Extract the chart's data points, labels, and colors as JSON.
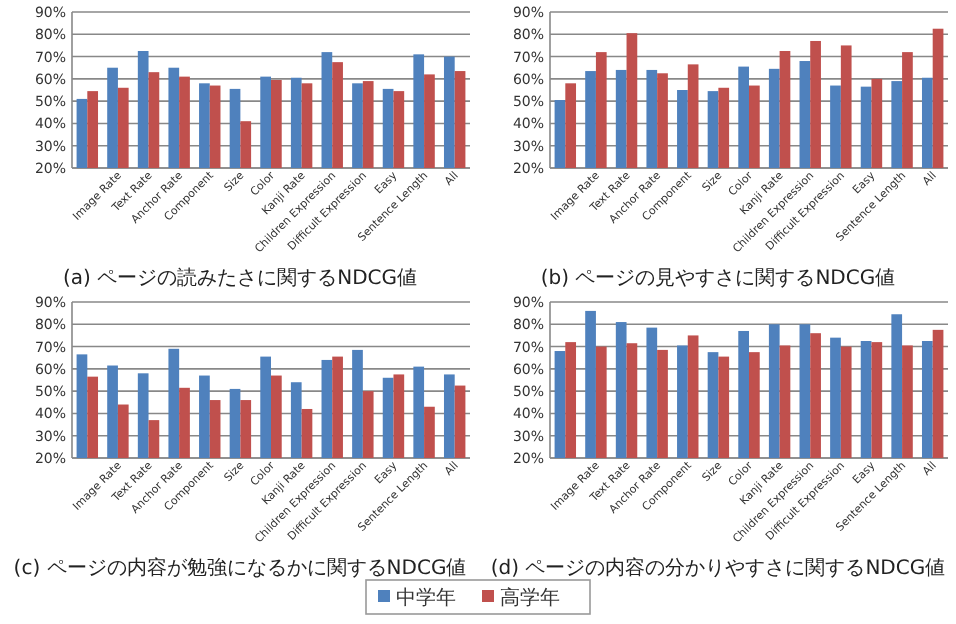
{
  "chart_data": [
    {
      "type": "bar",
      "title": "(a) ページの読みたさに関するNDCG値",
      "categories": [
        null,
        "Image Rate",
        "Text Rate",
        "Anchor Rate",
        "Component",
        "Size",
        "Color",
        "Kanji Rate",
        "Children Expression",
        "Difficult Expression",
        "Easy",
        "Sentence Length",
        "All"
      ],
      "series": [
        {
          "name": "中学年",
          "color": "#4f81bd",
          "values": [
            51,
            65,
            72.5,
            65,
            58,
            55.5,
            61,
            60.5,
            72,
            58,
            55.5,
            71,
            70
          ]
        },
        {
          "name": "高学年",
          "color": "#c0504d",
          "values": [
            54.5,
            56,
            63,
            61,
            57,
            41,
            59.5,
            58,
            67.5,
            59,
            54.5,
            62,
            63.5
          ]
        }
      ],
      "ylim": [
        20,
        90
      ],
      "yticks": [
        {
          "value": 20,
          "label": "20%"
        },
        {
          "value": 30,
          "label": "30%"
        },
        {
          "value": 40,
          "label": "40%"
        },
        {
          "value": 50,
          "label": "50%"
        },
        {
          "value": 60,
          "label": "60%"
        },
        {
          "value": 70,
          "label": "70%"
        },
        {
          "value": 80,
          "label": "80%"
        },
        {
          "value": 90,
          "label": "90%"
        }
      ],
      "grid": "y",
      "legend": "bottom"
    },
    {
      "type": "bar",
      "title": "(b) ページの見やすさに関するNDCG値",
      "categories": [
        null,
        "Image Rate",
        "Text Rate",
        "Anchor Rate",
        "Component",
        "Size",
        "Color",
        "Kanji Rate",
        "Children Expression",
        "Difficult Expression",
        "Easy",
        "Sentence Length",
        "All"
      ],
      "series": [
        {
          "color": "#4f81bd",
          "values": [
            50.5,
            63.5,
            64,
            64,
            55,
            54.5,
            65.5,
            64.5,
            68,
            57,
            56.5,
            59,
            60.5
          ]
        },
        {
          "color": "#c0504d",
          "values": [
            58,
            72,
            80.5,
            62.5,
            66.5,
            56,
            57,
            72.5,
            77,
            75,
            60,
            72,
            82.5
          ]
        }
      ],
      "ylim": [
        20,
        90
      ],
      "yticks": [
        {
          "value": 20,
          "label": "20%"
        },
        {
          "value": 30,
          "label": "30%"
        },
        {
          "value": 40,
          "label": "40%"
        },
        {
          "value": 50,
          "label": "50%"
        },
        {
          "value": 60,
          "label": "60%"
        },
        {
          "value": 70,
          "label": "70%"
        },
        {
          "value": 80,
          "label": "80%"
        },
        {
          "value": 90,
          "label": "90%"
        }
      ],
      "grid": "y",
      "legend": "bottom"
    },
    {
      "type": "bar",
      "title": "(c) ページの内容が勉強になるかに関するNDCG値",
      "categories": [
        null,
        "Image Rate",
        "Text Rate",
        "Anchor Rate",
        "Component",
        "Size",
        "Color",
        "Kanji Rate",
        "Children Expression",
        "Difficult Expression",
        "Easy",
        "Sentence Length",
        "All"
      ],
      "series": [
        {
          "color": "#4f81bd",
          "values": [
            66.5,
            61.5,
            58,
            69,
            57,
            51,
            65.5,
            54,
            64,
            68.5,
            56,
            61,
            57.5
          ]
        },
        {
          "color": "#c0504d",
          "values": [
            56.5,
            44,
            37,
            51.5,
            46,
            46,
            57,
            42,
            65.5,
            50,
            57.5,
            43,
            52.5
          ]
        }
      ],
      "ylim": [
        20,
        90
      ],
      "yticks": [
        {
          "value": 20,
          "label": "20%"
        },
        {
          "value": 30,
          "label": "30%"
        },
        {
          "value": 40,
          "label": "40%"
        },
        {
          "value": 50,
          "label": "50%"
        },
        {
          "value": 60,
          "label": "60%"
        },
        {
          "value": 70,
          "label": "70%"
        },
        {
          "value": 80,
          "label": "80%"
        },
        {
          "value": 90,
          "label": "90%"
        }
      ],
      "grid": "y",
      "legend": "bottom"
    },
    {
      "type": "bar",
      "title": "(d) ページの内容の分かりやすさに関するNDCG値",
      "categories": [
        null,
        "Image Rate",
        "Text Rate",
        "Anchor Rate",
        "Component",
        "Size",
        "Color",
        "Kanji Rate",
        "Children Expression",
        "Difficult Expression",
        "Easy",
        "Sentence Length",
        "All"
      ],
      "series": [
        {
          "color": "#4f81bd",
          "values": [
            68,
            86,
            81,
            78.5,
            70.5,
            67.5,
            77,
            80,
            80,
            74,
            72.5,
            84.5,
            72.5
          ]
        },
        {
          "color": "#c0504d",
          "values": [
            72,
            70,
            71.5,
            68.5,
            75,
            65.5,
            67.5,
            70.5,
            76,
            70,
            72,
            70.5,
            77.5
          ]
        }
      ],
      "ylim": [
        20,
        90
      ],
      "yticks": [
        {
          "value": 20,
          "label": "20%"
        },
        {
          "value": 30,
          "label": "30%"
        },
        {
          "value": 40,
          "label": "40%"
        },
        {
          "value": 50,
          "label": "50%"
        },
        {
          "value": 60,
          "label": "60%"
        },
        {
          "value": 70,
          "label": "70%"
        },
        {
          "value": 80,
          "label": "80%"
        },
        {
          "value": 90,
          "label": "90%"
        }
      ],
      "grid": "y",
      "legend": "bottom"
    }
  ]
}
